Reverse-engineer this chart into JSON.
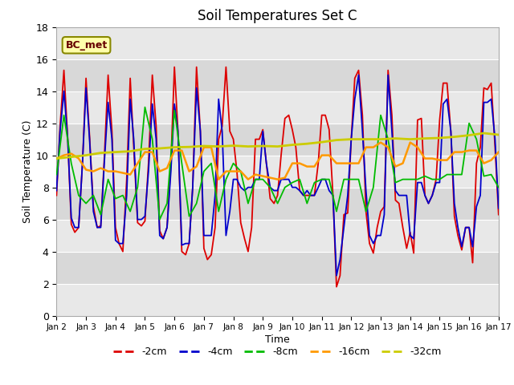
{
  "title": "Soil Temperatures Set C",
  "xlabel": "Time",
  "ylabel": "Soil Temperature (C)",
  "ylim": [
    0,
    18
  ],
  "xlim": [
    0,
    15
  ],
  "xtick_labels": [
    "Jan 2",
    "Jan 3",
    "Jan 4",
    "Jan 5",
    "Jan 6",
    "Jan 7",
    "Jan 8",
    "Jan 9",
    "Jan 10",
    "Jan 11",
    "Jan 12",
    "Jan 13",
    "Jan 14",
    "Jan 15",
    "Jan 16",
    "Jan 17"
  ],
  "annotation": "BC_met",
  "bg_color": "#dedede",
  "series": {
    "-2cm": {
      "color": "#dd0000",
      "linewidth": 1.3,
      "x": [
        0.0,
        0.12,
        0.25,
        0.38,
        0.5,
        0.62,
        0.75,
        0.88,
        1.0,
        1.12,
        1.25,
        1.38,
        1.5,
        1.62,
        1.75,
        1.88,
        2.0,
        2.12,
        2.25,
        2.38,
        2.5,
        2.62,
        2.75,
        2.88,
        3.0,
        3.12,
        3.25,
        3.38,
        3.5,
        3.62,
        3.75,
        3.88,
        4.0,
        4.12,
        4.25,
        4.38,
        4.5,
        4.62,
        4.75,
        4.88,
        5.0,
        5.12,
        5.25,
        5.38,
        5.5,
        5.62,
        5.75,
        5.88,
        6.0,
        6.12,
        6.25,
        6.38,
        6.5,
        6.62,
        6.75,
        6.88,
        7.0,
        7.12,
        7.25,
        7.38,
        7.5,
        7.62,
        7.75,
        7.88,
        8.0,
        8.12,
        8.25,
        8.38,
        8.5,
        8.62,
        8.75,
        8.88,
        9.0,
        9.12,
        9.25,
        9.38,
        9.5,
        9.62,
        9.75,
        9.88,
        10.0,
        10.12,
        10.25,
        10.38,
        10.5,
        10.62,
        10.75,
        10.88,
        11.0,
        11.12,
        11.25,
        11.38,
        11.5,
        11.62,
        11.75,
        11.88,
        12.0,
        12.12,
        12.25,
        12.38,
        12.5,
        12.62,
        12.75,
        12.88,
        13.0,
        13.12,
        13.25,
        13.38,
        13.5,
        13.62,
        13.75,
        13.88,
        14.0,
        14.12,
        14.25,
        14.38,
        14.5,
        14.62,
        14.75,
        14.88,
        15.0
      ],
      "y": [
        7.5,
        11.8,
        15.3,
        11.0,
        5.7,
        5.2,
        5.5,
        9.5,
        14.8,
        11.2,
        6.8,
        5.5,
        5.6,
        9.8,
        15.0,
        11.5,
        5.5,
        4.5,
        4.0,
        8.5,
        14.8,
        10.5,
        5.8,
        5.6,
        5.9,
        9.5,
        15.0,
        11.8,
        5.3,
        4.8,
        5.5,
        9.5,
        15.5,
        11.5,
        4.0,
        3.8,
        4.5,
        8.0,
        15.5,
        11.5,
        4.2,
        3.5,
        3.8,
        5.5,
        11.0,
        11.8,
        15.5,
        11.5,
        11.0,
        9.0,
        5.8,
        4.8,
        4.0,
        5.5,
        11.0,
        11.0,
        11.6,
        9.5,
        7.3,
        7.0,
        7.5,
        10.0,
        12.3,
        12.5,
        11.6,
        10.5,
        7.8,
        7.5,
        7.5,
        7.5,
        7.5,
        9.5,
        12.5,
        12.5,
        11.6,
        7.5,
        1.8,
        2.5,
        6.3,
        6.4,
        11.0,
        14.8,
        15.3,
        12.5,
        6.5,
        4.5,
        3.9,
        5.5,
        6.5,
        6.8,
        15.3,
        12.5,
        7.2,
        7.0,
        5.5,
        4.2,
        5.2,
        3.9,
        12.2,
        12.3,
        7.5,
        7.0,
        7.5,
        8.5,
        12.2,
        14.5,
        14.5,
        11.5,
        6.2,
        5.0,
        4.1,
        5.5,
        5.5,
        3.3,
        9.5,
        10.5,
        14.2,
        14.1,
        14.5,
        10.5,
        6.3
      ]
    },
    "-4cm": {
      "color": "#0000cc",
      "linewidth": 1.3,
      "x": [
        0.0,
        0.12,
        0.25,
        0.38,
        0.5,
        0.62,
        0.75,
        0.88,
        1.0,
        1.12,
        1.25,
        1.38,
        1.5,
        1.62,
        1.75,
        1.88,
        2.0,
        2.12,
        2.25,
        2.38,
        2.5,
        2.62,
        2.75,
        2.88,
        3.0,
        3.12,
        3.25,
        3.38,
        3.5,
        3.62,
        3.75,
        3.88,
        4.0,
        4.12,
        4.25,
        4.38,
        4.5,
        4.62,
        4.75,
        4.88,
        5.0,
        5.12,
        5.25,
        5.38,
        5.5,
        5.62,
        5.75,
        5.88,
        6.0,
        6.12,
        6.25,
        6.38,
        6.5,
        6.62,
        6.75,
        6.88,
        7.0,
        7.12,
        7.25,
        7.38,
        7.5,
        7.62,
        7.75,
        7.88,
        8.0,
        8.12,
        8.25,
        8.38,
        8.5,
        8.62,
        8.75,
        8.88,
        9.0,
        9.12,
        9.25,
        9.38,
        9.5,
        9.62,
        9.75,
        9.88,
        10.0,
        10.12,
        10.25,
        10.38,
        10.5,
        10.62,
        10.75,
        10.88,
        11.0,
        11.12,
        11.25,
        11.38,
        11.5,
        11.62,
        11.75,
        11.88,
        12.0,
        12.12,
        12.25,
        12.38,
        12.5,
        12.62,
        12.75,
        12.88,
        13.0,
        13.12,
        13.25,
        13.38,
        13.5,
        13.62,
        13.75,
        13.88,
        14.0,
        14.12,
        14.25,
        14.38,
        14.5,
        14.62,
        14.75,
        14.88,
        15.0
      ],
      "y": [
        7.8,
        11.5,
        14.0,
        11.0,
        6.1,
        5.5,
        5.5,
        9.5,
        14.2,
        11.0,
        6.5,
        5.5,
        5.5,
        9.5,
        13.3,
        11.0,
        4.7,
        4.5,
        4.5,
        7.5,
        13.5,
        11.0,
        6.0,
        6.0,
        6.2,
        9.0,
        13.2,
        11.0,
        5.0,
        4.8,
        5.5,
        9.0,
        13.2,
        11.5,
        4.4,
        4.5,
        4.5,
        8.0,
        14.2,
        11.5,
        5.0,
        5.0,
        5.0,
        7.5,
        13.5,
        11.5,
        5.0,
        6.5,
        8.5,
        8.5,
        8.0,
        7.8,
        8.0,
        8.0,
        8.5,
        8.5,
        11.5,
        9.5,
        8.0,
        7.8,
        7.8,
        8.5,
        8.5,
        8.5,
        8.0,
        8.0,
        7.8,
        7.5,
        7.8,
        7.5,
        7.5,
        8.0,
        8.5,
        8.5,
        7.8,
        7.5,
        2.5,
        3.5,
        5.5,
        7.5,
        11.0,
        13.5,
        15.0,
        11.5,
        7.8,
        5.0,
        4.5,
        5.0,
        5.0,
        6.3,
        15.0,
        11.5,
        7.8,
        7.5,
        7.5,
        7.5,
        5.0,
        4.8,
        8.3,
        8.3,
        7.5,
        7.0,
        7.5,
        8.3,
        8.3,
        13.2,
        13.5,
        11.5,
        7.0,
        5.5,
        4.3,
        5.5,
        5.5,
        4.3,
        6.8,
        7.5,
        13.3,
        13.3,
        13.5,
        11.0,
        6.7
      ]
    },
    "-8cm": {
      "color": "#00bb00",
      "linewidth": 1.3,
      "x": [
        0.0,
        0.25,
        0.5,
        0.75,
        1.0,
        1.25,
        1.5,
        1.75,
        2.0,
        2.25,
        2.5,
        2.75,
        3.0,
        3.25,
        3.5,
        3.75,
        4.0,
        4.25,
        4.5,
        4.75,
        5.0,
        5.25,
        5.5,
        5.75,
        6.0,
        6.25,
        6.5,
        6.75,
        7.0,
        7.25,
        7.5,
        7.75,
        8.0,
        8.25,
        8.5,
        8.75,
        9.0,
        9.25,
        9.5,
        9.75,
        10.0,
        10.25,
        10.5,
        10.75,
        11.0,
        11.25,
        11.5,
        11.75,
        12.0,
        12.25,
        12.5,
        12.75,
        13.0,
        13.25,
        13.5,
        13.75,
        14.0,
        14.25,
        14.5,
        14.75,
        15.0
      ],
      "y": [
        8.8,
        12.5,
        9.5,
        7.5,
        7.0,
        7.5,
        6.3,
        8.5,
        7.3,
        7.5,
        6.5,
        8.0,
        13.0,
        11.0,
        6.0,
        7.0,
        12.8,
        9.5,
        6.2,
        7.0,
        9.0,
        9.5,
        6.5,
        8.5,
        9.5,
        9.0,
        7.0,
        8.5,
        8.5,
        8.0,
        7.0,
        8.0,
        8.3,
        8.5,
        7.0,
        8.3,
        8.5,
        8.5,
        6.5,
        8.5,
        8.5,
        8.5,
        6.5,
        8.0,
        12.5,
        11.0,
        8.3,
        8.5,
        8.5,
        8.5,
        8.7,
        8.5,
        8.5,
        8.8,
        8.8,
        8.8,
        12.0,
        11.0,
        8.7,
        8.8,
        8.0
      ]
    },
    "-16cm": {
      "color": "#ff9900",
      "linewidth": 1.8,
      "x": [
        0.0,
        0.25,
        0.5,
        0.75,
        1.0,
        1.25,
        1.5,
        1.75,
        2.0,
        2.25,
        2.5,
        2.75,
        3.0,
        3.25,
        3.5,
        3.75,
        4.0,
        4.25,
        4.5,
        4.75,
        5.0,
        5.25,
        5.5,
        5.75,
        6.0,
        6.25,
        6.5,
        6.75,
        7.0,
        7.25,
        7.5,
        7.75,
        8.0,
        8.25,
        8.5,
        8.75,
        9.0,
        9.25,
        9.5,
        9.75,
        10.0,
        10.25,
        10.5,
        10.75,
        11.0,
        11.25,
        11.5,
        11.75,
        12.0,
        12.25,
        12.5,
        12.75,
        13.0,
        13.25,
        13.5,
        13.75,
        14.0,
        14.25,
        14.5,
        14.75,
        15.0
      ],
      "y": [
        9.8,
        10.0,
        10.1,
        9.8,
        9.1,
        9.0,
        9.2,
        9.0,
        9.0,
        8.9,
        8.8,
        9.5,
        10.2,
        10.2,
        9.0,
        9.2,
        10.3,
        10.3,
        9.0,
        9.3,
        10.5,
        10.5,
        8.5,
        9.0,
        9.0,
        9.0,
        8.5,
        8.8,
        8.7,
        8.6,
        8.5,
        8.6,
        9.5,
        9.5,
        9.3,
        9.3,
        10.0,
        10.0,
        9.5,
        9.5,
        9.5,
        9.5,
        10.5,
        10.5,
        10.8,
        10.5,
        9.3,
        9.5,
        10.8,
        10.5,
        9.8,
        9.8,
        9.7,
        9.7,
        10.2,
        10.2,
        10.3,
        10.3,
        9.5,
        9.7,
        10.2
      ]
    },
    "-32cm": {
      "color": "#cccc00",
      "linewidth": 2.0,
      "x": [
        0.0,
        0.5,
        1.0,
        1.5,
        2.0,
        2.5,
        3.0,
        3.5,
        4.0,
        4.5,
        5.0,
        5.5,
        6.0,
        6.5,
        7.0,
        7.5,
        8.0,
        8.5,
        9.0,
        9.5,
        10.0,
        10.5,
        11.0,
        11.5,
        12.0,
        12.5,
        13.0,
        13.5,
        14.0,
        14.5,
        15.0
      ],
      "y": [
        9.8,
        9.9,
        10.0,
        10.15,
        10.2,
        10.25,
        10.4,
        10.43,
        10.5,
        10.52,
        10.58,
        10.55,
        10.6,
        10.55,
        10.58,
        10.55,
        10.65,
        10.72,
        10.82,
        10.95,
        11.0,
        11.0,
        11.0,
        11.05,
        11.0,
        11.05,
        11.08,
        11.15,
        11.25,
        11.38,
        11.28
      ]
    }
  },
  "legend_entries": [
    "-2cm",
    "-4cm",
    "-8cm",
    "-16cm",
    "-32cm"
  ],
  "legend_colors": [
    "#dd0000",
    "#0000cc",
    "#00bb00",
    "#ff9900",
    "#cccc00"
  ]
}
